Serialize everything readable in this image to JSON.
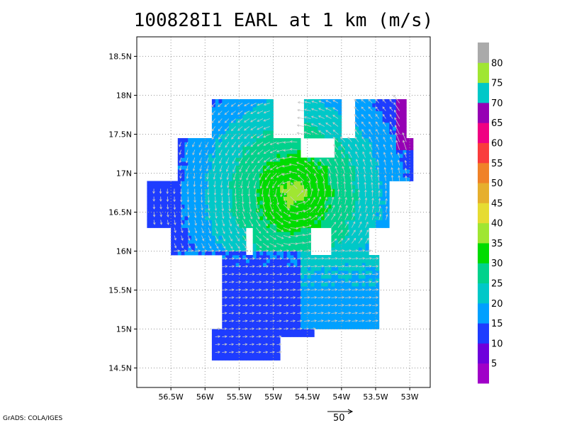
{
  "title": "100828I1 EARL at 1 km (m/s)",
  "credit": "GrADS: COLA/IGES",
  "vector_scale_label": "50",
  "colors": {
    "background": "#ffffff",
    "frame": "#000000",
    "grid": "#999999",
    "vector": "#c8c8c8"
  },
  "chart_data": {
    "type": "heatmap",
    "title": "100828I1 EARL at 1 km (m/s)",
    "x_axis": {
      "range": [
        -57.0,
        -52.7
      ],
      "ticks": [
        -56.5,
        -56.0,
        -55.5,
        -55.0,
        -54.5,
        -54.0,
        -53.5,
        -53.0
      ],
      "tick_labels": [
        "56.5W",
        "56W",
        "55.5W",
        "55W",
        "54.5W",
        "54W",
        "53.5W",
        "53W"
      ]
    },
    "y_axis": {
      "range": [
        14.25,
        18.75
      ],
      "ticks": [
        14.5,
        15.0,
        15.5,
        16.0,
        16.5,
        17.0,
        17.5,
        18.0,
        18.5
      ],
      "tick_labels": [
        "14.5N",
        "15N",
        "15.5N",
        "16N",
        "16.5N",
        "17N",
        "17.5N",
        "18N",
        "18.5N"
      ]
    },
    "grid": true,
    "colorbar": {
      "levels": [
        5,
        10,
        15,
        20,
        25,
        30,
        35,
        40,
        45,
        50,
        55,
        60,
        65,
        70,
        75,
        80
      ],
      "colors": [
        "#a000c8",
        "#6e00dc",
        "#1e3cff",
        "#00a0ff",
        "#00c8c8",
        "#00d28c",
        "#00dc00",
        "#a0e632",
        "#e6dc32",
        "#e6af2d",
        "#f08228",
        "#fa3c3c",
        "#f00082",
        "#9600b4",
        "#00c8c8",
        "#a0e632",
        "#aaaaaa"
      ],
      "labels": [
        "5",
        "10",
        "15",
        "20",
        "25",
        "30",
        "35",
        "40",
        "45",
        "50",
        "55",
        "60",
        "65",
        "70",
        "75",
        "80"
      ]
    },
    "center": {
      "lon": -54.7,
      "lat": 16.75
    },
    "wind_speed_regions": [
      {
        "level": "15-20",
        "description_value": 18
      },
      {
        "level": "20-25",
        "description_value": 22
      },
      {
        "level": "25-30",
        "description_value": 27
      },
      {
        "level": "30-35",
        "description_value": 33
      },
      {
        "level": "35-40",
        "description_value": 37
      },
      {
        "level": "10-15",
        "description_value": 13
      },
      {
        "level": "5-10",
        "description_value": 8
      }
    ],
    "vector_reference": 50
  }
}
